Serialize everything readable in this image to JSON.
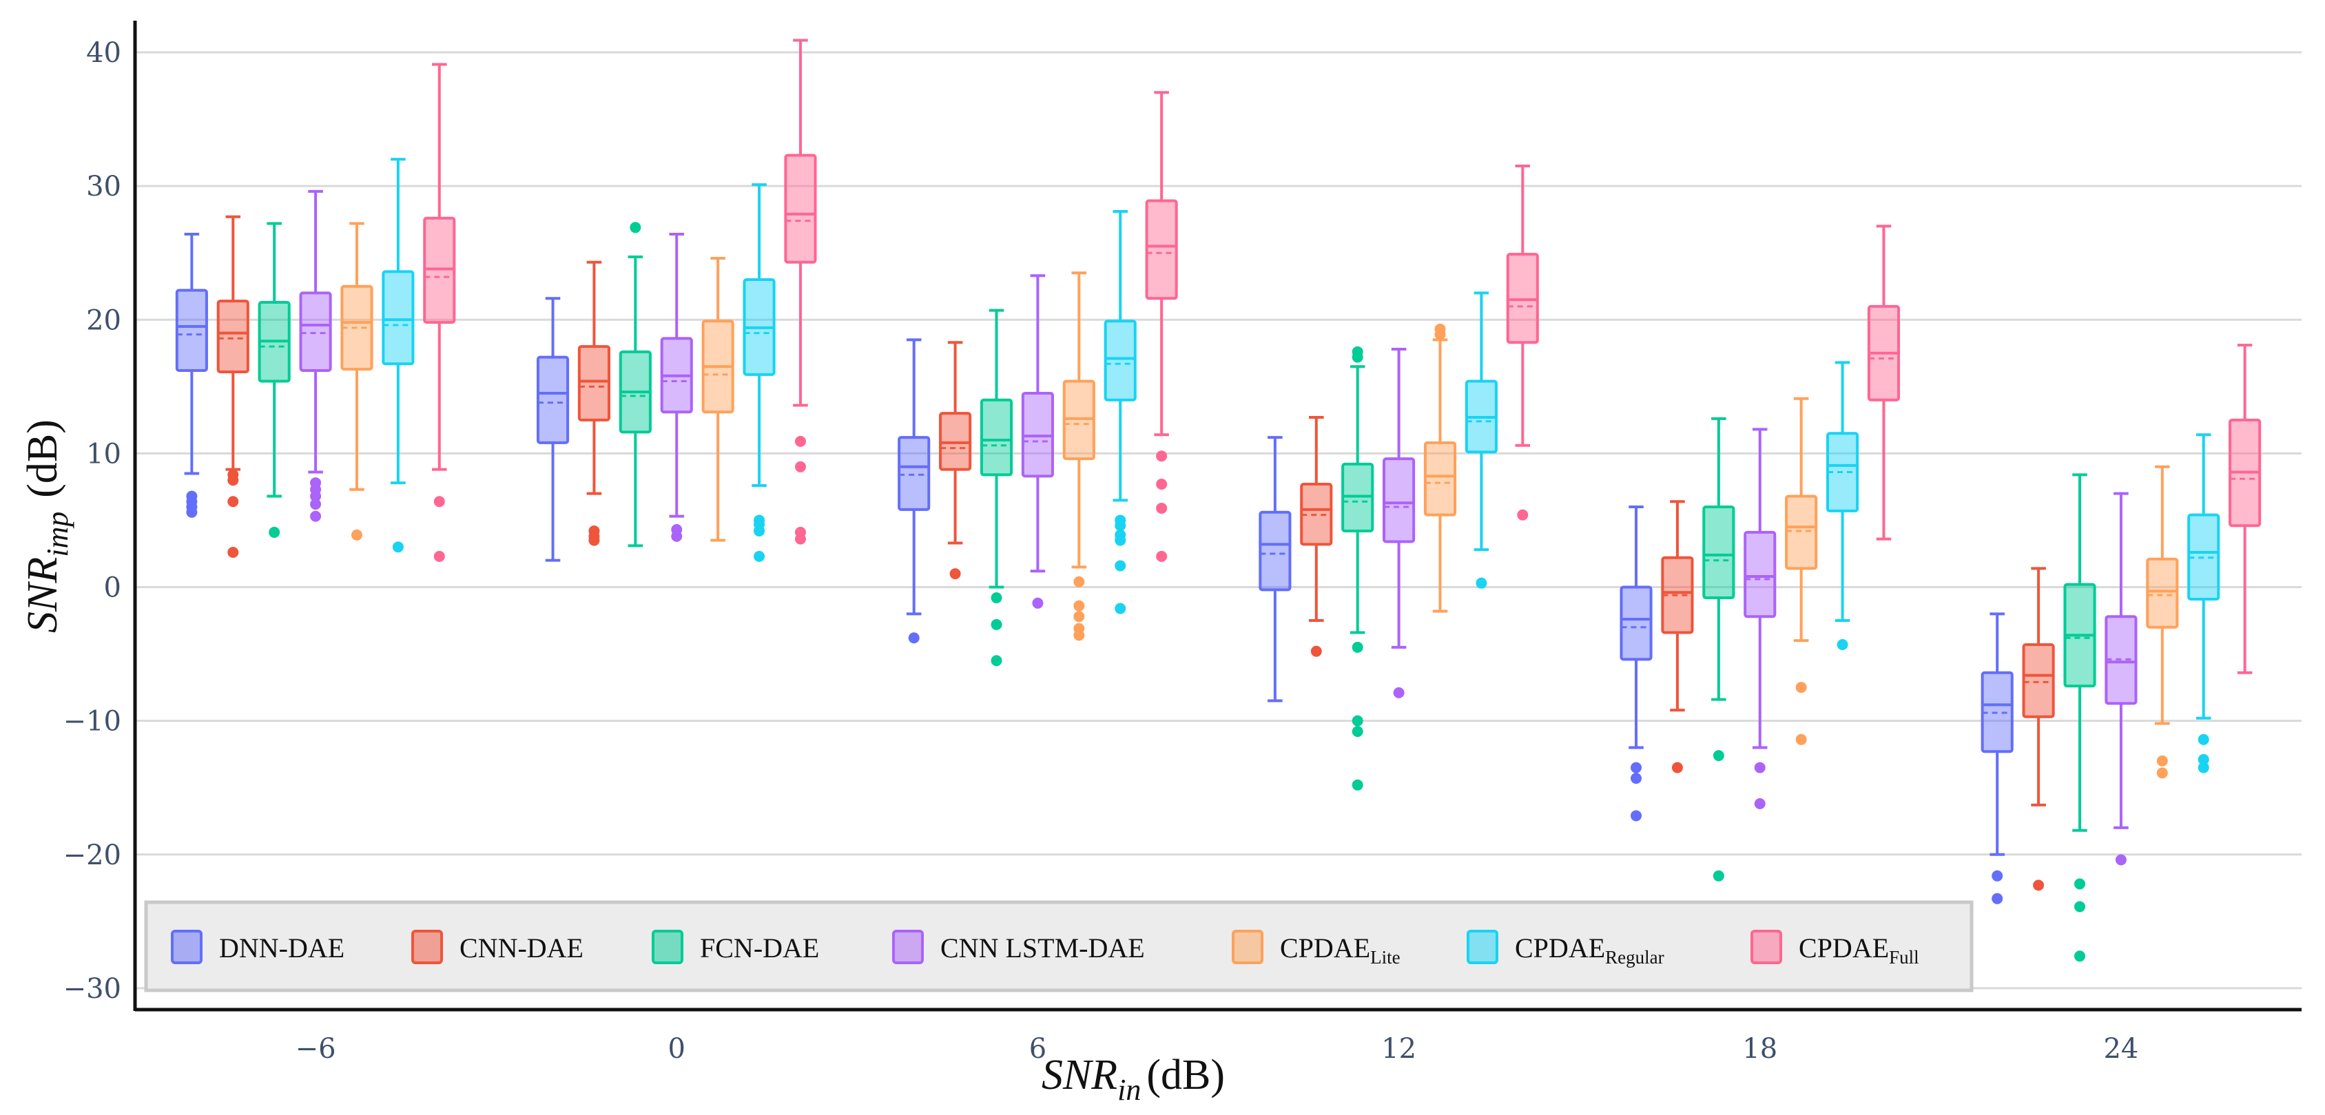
{
  "chart_data": {
    "type": "box",
    "title": "",
    "xlabel": {
      "main": "SNR",
      "sub": "in",
      "unit": "(dB)"
    },
    "ylabel": {
      "main": "SNR",
      "sub": "imp",
      "unit": "(dB)"
    },
    "ylim": [
      -32,
      42
    ],
    "yticks": [
      40,
      30,
      20,
      10,
      0,
      -10,
      -20,
      -30
    ],
    "ytick_labels": [
      "40",
      "30",
      "20",
      "10",
      "0",
      "−10",
      "−20",
      "−30"
    ],
    "categories": [
      "−6",
      "0",
      "6",
      "12",
      "18",
      "24"
    ],
    "grid": true,
    "legend_position": "bottom-left",
    "series": [
      {
        "name": "DNN-DAE",
        "label_main": "DNN-DAE",
        "label_sub": "",
        "color": "#636efa",
        "boxes": [
          {
            "lowerfence": 8.5,
            "q1": 16.2,
            "median": 19.5,
            "mean": 18.9,
            "q3": 22.2,
            "upperfence": 26.4,
            "outliers": [
              5.6,
              6.0,
              6.4,
              6.8
            ]
          },
          {
            "lowerfence": 2.0,
            "q1": 10.8,
            "median": 14.5,
            "mean": 13.8,
            "q3": 17.2,
            "upperfence": 21.6,
            "outliers": []
          },
          {
            "lowerfence": -2.0,
            "q1": 5.8,
            "median": 9.0,
            "mean": 8.4,
            "q3": 11.2,
            "upperfence": 18.5,
            "outliers": [
              -3.8
            ]
          },
          {
            "lowerfence": -8.5,
            "q1": -0.2,
            "median": 3.2,
            "mean": 2.5,
            "q3": 5.6,
            "upperfence": 11.2,
            "outliers": []
          },
          {
            "lowerfence": -12.0,
            "q1": -5.4,
            "median": -2.4,
            "mean": -3.0,
            "q3": 0.0,
            "upperfence": 6.0,
            "outliers": [
              -13.5,
              -14.3,
              -17.1
            ]
          },
          {
            "lowerfence": -20.0,
            "q1": -12.3,
            "median": -8.8,
            "mean": -9.4,
            "q3": -6.4,
            "upperfence": -2.0,
            "outliers": [
              -21.6,
              -23.3
            ]
          }
        ]
      },
      {
        "name": "CNN-DAE",
        "label_main": "CNN-DAE",
        "label_sub": "",
        "color": "#ef553b",
        "boxes": [
          {
            "lowerfence": 8.8,
            "q1": 16.1,
            "median": 19.0,
            "mean": 18.6,
            "q3": 21.4,
            "upperfence": 27.7,
            "outliers": [
              2.6,
              6.4,
              8.0,
              8.4
            ]
          },
          {
            "lowerfence": 7.0,
            "q1": 12.5,
            "median": 15.4,
            "mean": 15.0,
            "q3": 18.0,
            "upperfence": 24.3,
            "outliers": [
              3.5,
              3.8,
              4.2
            ]
          },
          {
            "lowerfence": 3.3,
            "q1": 8.8,
            "median": 10.8,
            "mean": 10.4,
            "q3": 13.0,
            "upperfence": 18.3,
            "outliers": [
              1.0
            ]
          },
          {
            "lowerfence": -2.5,
            "q1": 3.2,
            "median": 5.8,
            "mean": 5.4,
            "q3": 7.7,
            "upperfence": 12.7,
            "outliers": [
              -4.8
            ]
          },
          {
            "lowerfence": -9.2,
            "q1": -3.4,
            "median": -0.4,
            "mean": -0.6,
            "q3": 2.2,
            "upperfence": 6.4,
            "outliers": [
              -13.5
            ]
          },
          {
            "lowerfence": -16.3,
            "q1": -9.7,
            "median": -6.6,
            "mean": -7.1,
            "q3": -4.3,
            "upperfence": 1.4,
            "outliers": [
              -22.3
            ]
          }
        ]
      },
      {
        "name": "FCN-DAE",
        "label_main": "FCN-DAE",
        "label_sub": "",
        "color": "#00cc96",
        "boxes": [
          {
            "lowerfence": 6.8,
            "q1": 15.4,
            "median": 18.4,
            "mean": 18.0,
            "q3": 21.3,
            "upperfence": 27.2,
            "outliers": [
              4.1
            ]
          },
          {
            "lowerfence": 3.1,
            "q1": 11.6,
            "median": 14.6,
            "mean": 14.3,
            "q3": 17.6,
            "upperfence": 24.7,
            "outliers": [
              26.9
            ]
          },
          {
            "lowerfence": 0.0,
            "q1": 8.4,
            "median": 11.0,
            "mean": 10.6,
            "q3": 14.0,
            "upperfence": 20.7,
            "outliers": [
              -0.8,
              -2.8,
              -5.5
            ]
          },
          {
            "lowerfence": -3.4,
            "q1": 4.2,
            "median": 6.8,
            "mean": 6.4,
            "q3": 9.2,
            "upperfence": 16.5,
            "outliers": [
              17.2,
              17.6,
              -4.5,
              -10.0,
              -10.8,
              -14.8
            ]
          },
          {
            "lowerfence": -8.4,
            "q1": -0.8,
            "median": 2.4,
            "mean": 2.0,
            "q3": 6.0,
            "upperfence": 12.6,
            "outliers": [
              -12.6,
              -21.6
            ]
          },
          {
            "lowerfence": -18.2,
            "q1": -7.4,
            "median": -3.6,
            "mean": -3.8,
            "q3": 0.2,
            "upperfence": 8.4,
            "outliers": [
              -22.2,
              -23.9,
              -27.6
            ]
          }
        ]
      },
      {
        "name": "CNN LSTM-DAE",
        "label_main": "CNN LSTM-DAE",
        "label_sub": "",
        "color": "#ab63fa",
        "boxes": [
          {
            "lowerfence": 8.6,
            "q1": 16.2,
            "median": 19.6,
            "mean": 19.0,
            "q3": 22.0,
            "upperfence": 29.6,
            "outliers": [
              5.3,
              6.2,
              6.8,
              7.3,
              7.8
            ]
          },
          {
            "lowerfence": 5.3,
            "q1": 13.1,
            "median": 15.8,
            "mean": 15.4,
            "q3": 18.6,
            "upperfence": 26.4,
            "outliers": [
              3.8,
              4.3
            ]
          },
          {
            "lowerfence": 1.2,
            "q1": 8.3,
            "median": 11.3,
            "mean": 10.9,
            "q3": 14.5,
            "upperfence": 23.3,
            "outliers": [
              -1.2
            ]
          },
          {
            "lowerfence": -4.5,
            "q1": 3.4,
            "median": 6.3,
            "mean": 6.0,
            "q3": 9.6,
            "upperfence": 17.8,
            "outliers": [
              -7.9
            ]
          },
          {
            "lowerfence": -12.0,
            "q1": -2.2,
            "median": 0.8,
            "mean": 0.6,
            "q3": 4.1,
            "upperfence": 11.8,
            "outliers": [
              -13.5,
              -16.2
            ]
          },
          {
            "lowerfence": -18.0,
            "q1": -8.7,
            "median": -5.6,
            "mean": -5.4,
            "q3": -2.2,
            "upperfence": 7.0,
            "outliers": [
              -20.4
            ]
          }
        ]
      },
      {
        "name": "CPDAE_Lite",
        "label_main": "CPDAE",
        "label_sub": "Lite",
        "color": "#ffa15a",
        "boxes": [
          {
            "lowerfence": 7.3,
            "q1": 16.3,
            "median": 19.8,
            "mean": 19.4,
            "q3": 22.5,
            "upperfence": 27.2,
            "outliers": [
              3.9
            ]
          },
          {
            "lowerfence": 3.5,
            "q1": 13.1,
            "median": 16.5,
            "mean": 15.9,
            "q3": 19.9,
            "upperfence": 24.6,
            "outliers": []
          },
          {
            "lowerfence": 1.5,
            "q1": 9.6,
            "median": 12.6,
            "mean": 12.2,
            "q3": 15.4,
            "upperfence": 23.5,
            "outliers": [
              0.4,
              -1.4,
              -2.2,
              -3.1,
              -3.6
            ]
          },
          {
            "lowerfence": -1.8,
            "q1": 5.4,
            "median": 8.3,
            "mean": 7.8,
            "q3": 10.8,
            "upperfence": 18.5,
            "outliers": [
              19.3,
              18.9
            ]
          },
          {
            "lowerfence": -4.0,
            "q1": 1.4,
            "median": 4.5,
            "mean": 4.2,
            "q3": 6.8,
            "upperfence": 14.1,
            "outliers": [
              -7.5,
              -11.4
            ]
          },
          {
            "lowerfence": -10.2,
            "q1": -3.0,
            "median": -0.3,
            "mean": -0.6,
            "q3": 2.1,
            "upperfence": 9.0,
            "outliers": [
              -13.0,
              -13.9
            ]
          }
        ]
      },
      {
        "name": "CPDAE_Regular",
        "label_main": "CPDAE",
        "label_sub": "Regular",
        "color": "#19d3f3",
        "boxes": [
          {
            "lowerfence": 7.8,
            "q1": 16.7,
            "median": 20.0,
            "mean": 19.6,
            "q3": 23.6,
            "upperfence": 32.0,
            "outliers": [
              3.0
            ]
          },
          {
            "lowerfence": 7.6,
            "q1": 15.9,
            "median": 19.4,
            "mean": 19.0,
            "q3": 23.0,
            "upperfence": 30.1,
            "outliers": [
              2.3,
              4.2,
              4.7,
              5.0
            ]
          },
          {
            "lowerfence": 6.5,
            "q1": 14.0,
            "median": 17.1,
            "mean": 16.7,
            "q3": 19.9,
            "upperfence": 28.1,
            "outliers": [
              5.0,
              4.6,
              3.9,
              3.5,
              1.6,
              -1.6
            ]
          },
          {
            "lowerfence": 2.8,
            "q1": 10.1,
            "median": 12.7,
            "mean": 12.4,
            "q3": 15.4,
            "upperfence": 22.0,
            "outliers": [
              0.3
            ]
          },
          {
            "lowerfence": -2.5,
            "q1": 5.7,
            "median": 9.1,
            "mean": 8.6,
            "q3": 11.5,
            "upperfence": 16.8,
            "outliers": [
              -4.3
            ]
          },
          {
            "lowerfence": -9.8,
            "q1": -0.9,
            "median": 2.6,
            "mean": 2.2,
            "q3": 5.4,
            "upperfence": 11.4,
            "outliers": [
              -11.4,
              -12.9,
              -13.5
            ]
          }
        ]
      },
      {
        "name": "CPDAE_Full",
        "label_main": "CPDAE",
        "label_sub": "Full",
        "color": "#ff6692",
        "boxes": [
          {
            "lowerfence": 8.8,
            "q1": 19.8,
            "median": 23.8,
            "mean": 23.2,
            "q3": 27.6,
            "upperfence": 39.1,
            "outliers": [
              6.4,
              2.3
            ]
          },
          {
            "lowerfence": 13.6,
            "q1": 24.3,
            "median": 27.9,
            "mean": 27.4,
            "q3": 32.3,
            "upperfence": 40.9,
            "outliers": [
              10.9,
              9.0,
              4.1,
              3.6
            ]
          },
          {
            "lowerfence": 11.4,
            "q1": 21.6,
            "median": 25.5,
            "mean": 25.0,
            "q3": 28.9,
            "upperfence": 37.0,
            "outliers": [
              9.8,
              7.7,
              5.9,
              2.3
            ]
          },
          {
            "lowerfence": 10.6,
            "q1": 18.3,
            "median": 21.5,
            "mean": 21.0,
            "q3": 24.9,
            "upperfence": 31.5,
            "outliers": [
              5.4
            ]
          },
          {
            "lowerfence": 3.6,
            "q1": 14.0,
            "median": 17.5,
            "mean": 17.1,
            "q3": 21.0,
            "upperfence": 27.0,
            "outliers": []
          },
          {
            "lowerfence": -6.4,
            "q1": 4.6,
            "median": 8.6,
            "mean": 8.1,
            "q3": 12.5,
            "upperfence": 18.1,
            "outliers": []
          }
        ]
      }
    ]
  }
}
